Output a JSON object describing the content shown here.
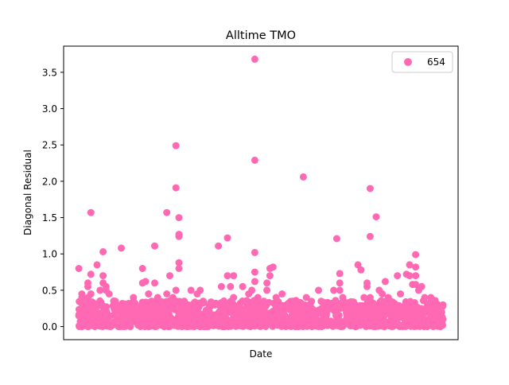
{
  "chart_data": {
    "type": "scatter",
    "title": "Alltime TMO",
    "xlabel": "Date",
    "ylabel": "Diagonal Residual",
    "ylim": [
      -0.18,
      3.86
    ],
    "yticks": [
      0.0,
      0.5,
      1.0,
      1.5,
      2.0,
      2.5,
      3.0,
      3.5
    ],
    "ytick_labels": [
      "0.0",
      "0.5",
      "1.0",
      "1.5",
      "2.0",
      "2.5",
      "3.0",
      "3.5"
    ],
    "xticks_visible": false,
    "grid": false,
    "legend": {
      "position": "top-right"
    },
    "series": [
      {
        "name": "654",
        "color": "#ff69b4",
        "points": [
          [
            0.01,
            0.8
          ],
          [
            0.02,
            0.45
          ],
          [
            0.02,
            0.4
          ],
          [
            0.02,
            0.32
          ],
          [
            0.01,
            0.15
          ],
          [
            0.02,
            0.1
          ],
          [
            0.02,
            0.0
          ],
          [
            0.05,
            1.57
          ],
          [
            0.05,
            0.72
          ],
          [
            0.04,
            0.6
          ],
          [
            0.04,
            0.55
          ],
          [
            0.05,
            0.45
          ],
          [
            0.04,
            0.4
          ],
          [
            0.05,
            0.25
          ],
          [
            0.05,
            0.15
          ],
          [
            0.05,
            0.05
          ],
          [
            0.04,
            0.0
          ],
          [
            0.07,
            0.85
          ],
          [
            0.09,
            1.03
          ],
          [
            0.09,
            0.7
          ],
          [
            0.09,
            0.6
          ],
          [
            0.1,
            0.55
          ],
          [
            0.1,
            0.5
          ],
          [
            0.11,
            0.45
          ],
          [
            0.08,
            0.5
          ],
          [
            0.08,
            0.3
          ],
          [
            0.09,
            0.2
          ],
          [
            0.1,
            0.1
          ],
          [
            0.07,
            0.05
          ],
          [
            0.15,
            1.08
          ],
          [
            0.13,
            0.35
          ],
          [
            0.14,
            0.2
          ],
          [
            0.16,
            0.3
          ],
          [
            0.16,
            0.05
          ],
          [
            0.17,
            0.25
          ],
          [
            0.18,
            0.0
          ],
          [
            0.19,
            0.4
          ],
          [
            0.2,
            0.15
          ],
          [
            0.22,
            0.8
          ],
          [
            0.22,
            0.6
          ],
          [
            0.23,
            0.62
          ],
          [
            0.24,
            0.45
          ],
          [
            0.25,
            0.35
          ],
          [
            0.21,
            0.25
          ],
          [
            0.23,
            0.1
          ],
          [
            0.24,
            0.0
          ],
          [
            0.26,
            1.11
          ],
          [
            0.26,
            0.6
          ],
          [
            0.27,
            0.4
          ],
          [
            0.28,
            0.2
          ],
          [
            0.29,
            0.05
          ],
          [
            0.3,
            1.57
          ],
          [
            0.31,
            0.7
          ],
          [
            0.3,
            0.45
          ],
          [
            0.31,
            0.3
          ],
          [
            0.33,
            2.49
          ],
          [
            0.33,
            1.91
          ],
          [
            0.34,
            1.5
          ],
          [
            0.34,
            1.27
          ],
          [
            0.34,
            1.24
          ],
          [
            0.34,
            0.88
          ],
          [
            0.34,
            0.8
          ],
          [
            0.33,
            0.5
          ],
          [
            0.32,
            0.4
          ],
          [
            0.35,
            0.25
          ],
          [
            0.36,
            0.1
          ],
          [
            0.35,
            0.0
          ],
          [
            0.38,
            0.5
          ],
          [
            0.37,
            0.3
          ],
          [
            0.4,
            0.45
          ],
          [
            0.41,
            0.5
          ],
          [
            0.42,
            0.35
          ],
          [
            0.43,
            0.2
          ],
          [
            0.44,
            0.05
          ],
          [
            0.45,
            0.3
          ],
          [
            0.47,
            1.11
          ],
          [
            0.48,
            0.55
          ],
          [
            0.5,
            1.22
          ],
          [
            0.5,
            0.7
          ],
          [
            0.51,
            0.55
          ],
          [
            0.52,
            0.7
          ],
          [
            0.52,
            0.4
          ],
          [
            0.49,
            0.2
          ],
          [
            0.53,
            0.1
          ],
          [
            0.55,
            0.55
          ],
          [
            0.56,
            0.35
          ],
          [
            0.57,
            0.45
          ],
          [
            0.58,
            0.2
          ],
          [
            0.56,
            0.05
          ],
          [
            0.59,
            3.68
          ],
          [
            0.59,
            2.29
          ],
          [
            0.59,
            1.02
          ],
          [
            0.59,
            0.75
          ],
          [
            0.59,
            0.62
          ],
          [
            0.6,
            0.4
          ],
          [
            0.58,
            0.5
          ],
          [
            0.6,
            0.3
          ],
          [
            0.61,
            0.1
          ],
          [
            0.63,
            0.6
          ],
          [
            0.64,
            0.8
          ],
          [
            0.65,
            0.82
          ],
          [
            0.64,
            0.7
          ],
          [
            0.63,
            0.5
          ],
          [
            0.62,
            0.35
          ],
          [
            0.66,
            0.4
          ],
          [
            0.67,
            0.2
          ],
          [
            0.68,
            0.45
          ],
          [
            0.69,
            0.15
          ],
          [
            0.72,
            0.35
          ],
          [
            0.74,
            0.2
          ],
          [
            0.75,
            2.06
          ],
          [
            0.76,
            0.4
          ],
          [
            0.77,
            0.3
          ],
          [
            0.78,
            0.1
          ],
          [
            0.8,
            0.5
          ],
          [
            0.81,
            0.25
          ],
          [
            0.83,
            0.3
          ],
          [
            0.85,
            0.5
          ],
          [
            0.86,
            1.21
          ],
          [
            0.87,
            0.73
          ],
          [
            0.87,
            0.6
          ],
          [
            0.87,
            0.5
          ],
          [
            0.88,
            0.4
          ],
          [
            0.89,
            0.3
          ],
          [
            0.9,
            0.15
          ],
          [
            0.92,
            0.3
          ],
          [
            0.93,
            0.85
          ],
          [
            0.94,
            0.78
          ],
          [
            0.95,
            0.4
          ],
          [
            0.96,
            0.6
          ],
          [
            0.96,
            0.55
          ],
          [
            0.97,
            1.9
          ],
          [
            0.97,
            1.24
          ],
          [
            0.97,
            0.4
          ],
          [
            0.99,
            1.51
          ],
          [
            1.0,
            0.5
          ],
          [
            1.01,
            0.45
          ],
          [
            1.02,
            0.62
          ],
          [
            1.03,
            0.4
          ],
          [
            1.04,
            0.3
          ],
          [
            1.05,
            0.2
          ],
          [
            1.06,
            0.7
          ],
          [
            1.07,
            0.45
          ],
          [
            1.09,
            0.72
          ],
          [
            1.1,
            0.85
          ],
          [
            1.1,
            0.7
          ],
          [
            1.11,
            0.58
          ],
          [
            1.12,
            0.99
          ],
          [
            1.12,
            0.82
          ],
          [
            1.12,
            0.7
          ],
          [
            1.12,
            0.58
          ],
          [
            1.13,
            0.5
          ],
          [
            1.14,
            0.55
          ],
          [
            1.15,
            0.4
          ],
          [
            1.16,
            0.3
          ],
          [
            1.17,
            0.4
          ],
          [
            1.18,
            0.35
          ],
          [
            1.19,
            0.3
          ],
          [
            1.2,
            0.2
          ],
          [
            1.21,
            0.3
          ],
          [
            1.21,
            0.1
          ]
        ]
      }
    ],
    "dense_band": {
      "y_min": 0.0,
      "y_max": 0.36,
      "x_min": 0.01,
      "x_max": 1.21,
      "count": 1300,
      "seed": 654
    },
    "xlim": [
      -0.04,
      1.26
    ]
  }
}
